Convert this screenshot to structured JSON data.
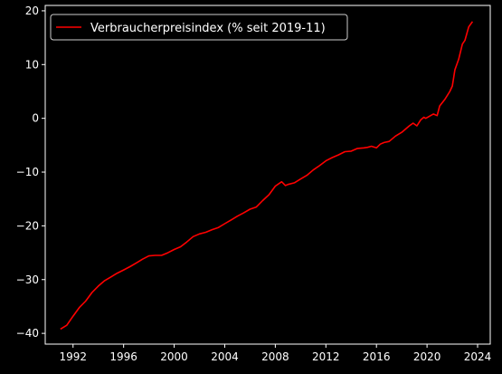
{
  "chart_data": {
    "type": "line",
    "title": "",
    "xlabel": "",
    "ylabel": "",
    "xlim": [
      1989.8,
      2025.0
    ],
    "ylim": [
      -42,
      21
    ],
    "x_ticks": [
      1992,
      1996,
      2000,
      2004,
      2008,
      2012,
      2016,
      2020,
      2024
    ],
    "y_ticks": [
      -40,
      -30,
      -20,
      -10,
      0,
      10,
      20
    ],
    "grid": false,
    "legend_position": "upper-left",
    "series": [
      {
        "name": "Verbraucherpreisindex (% seit 2019-11)",
        "color": "#ff0000",
        "x": [
          1991.0,
          1991.5,
          1992.0,
          1992.5,
          1993.0,
          1993.5,
          1994.0,
          1994.5,
          1995.0,
          1995.5,
          1996.0,
          1996.5,
          1997.0,
          1997.5,
          1998.0,
          1998.5,
          1999.0,
          1999.5,
          2000.0,
          2000.5,
          2001.0,
          2001.5,
          2002.0,
          2002.5,
          2003.0,
          2003.5,
          2004.0,
          2004.5,
          2005.0,
          2005.5,
          2006.0,
          2006.5,
          2007.0,
          2007.5,
          2008.0,
          2008.5,
          2008.8,
          2009.0,
          2009.5,
          2010.0,
          2010.5,
          2011.0,
          2011.5,
          2012.0,
          2012.5,
          2013.0,
          2013.5,
          2014.0,
          2014.5,
          2015.0,
          2015.3,
          2015.6,
          2016.0,
          2016.3,
          2016.6,
          2017.0,
          2017.5,
          2018.0,
          2018.3,
          2018.6,
          2018.9,
          2019.2,
          2019.5,
          2019.75,
          2019.9,
          2020.2,
          2020.5,
          2020.8,
          2021.0,
          2021.4,
          2021.8,
          2022.0,
          2022.2,
          2022.5,
          2022.8,
          2023.0,
          2023.3,
          2023.6
        ],
        "values": [
          -39.2,
          -38.5,
          -36.8,
          -35.2,
          -34.0,
          -32.4,
          -31.2,
          -30.2,
          -29.5,
          -28.8,
          -28.2,
          -27.6,
          -26.9,
          -26.2,
          -25.6,
          -25.5,
          -25.5,
          -25.0,
          -24.4,
          -23.9,
          -23.0,
          -22.0,
          -21.5,
          -21.2,
          -20.7,
          -20.3,
          -19.6,
          -18.9,
          -18.2,
          -17.6,
          -16.9,
          -16.5,
          -15.3,
          -14.2,
          -12.6,
          -11.8,
          -12.5,
          -12.3,
          -12.0,
          -11.3,
          -10.6,
          -9.6,
          -8.8,
          -7.9,
          -7.3,
          -6.8,
          -6.2,
          -6.1,
          -5.6,
          -5.5,
          -5.4,
          -5.2,
          -5.5,
          -4.8,
          -4.5,
          -4.3,
          -3.3,
          -2.6,
          -2.0,
          -1.4,
          -0.9,
          -1.4,
          -0.3,
          0.2,
          0.0,
          0.4,
          0.8,
          0.5,
          2.3,
          3.5,
          5.0,
          6.0,
          9.0,
          11.0,
          13.8,
          14.5,
          17.0,
          18.0
        ]
      }
    ]
  }
}
